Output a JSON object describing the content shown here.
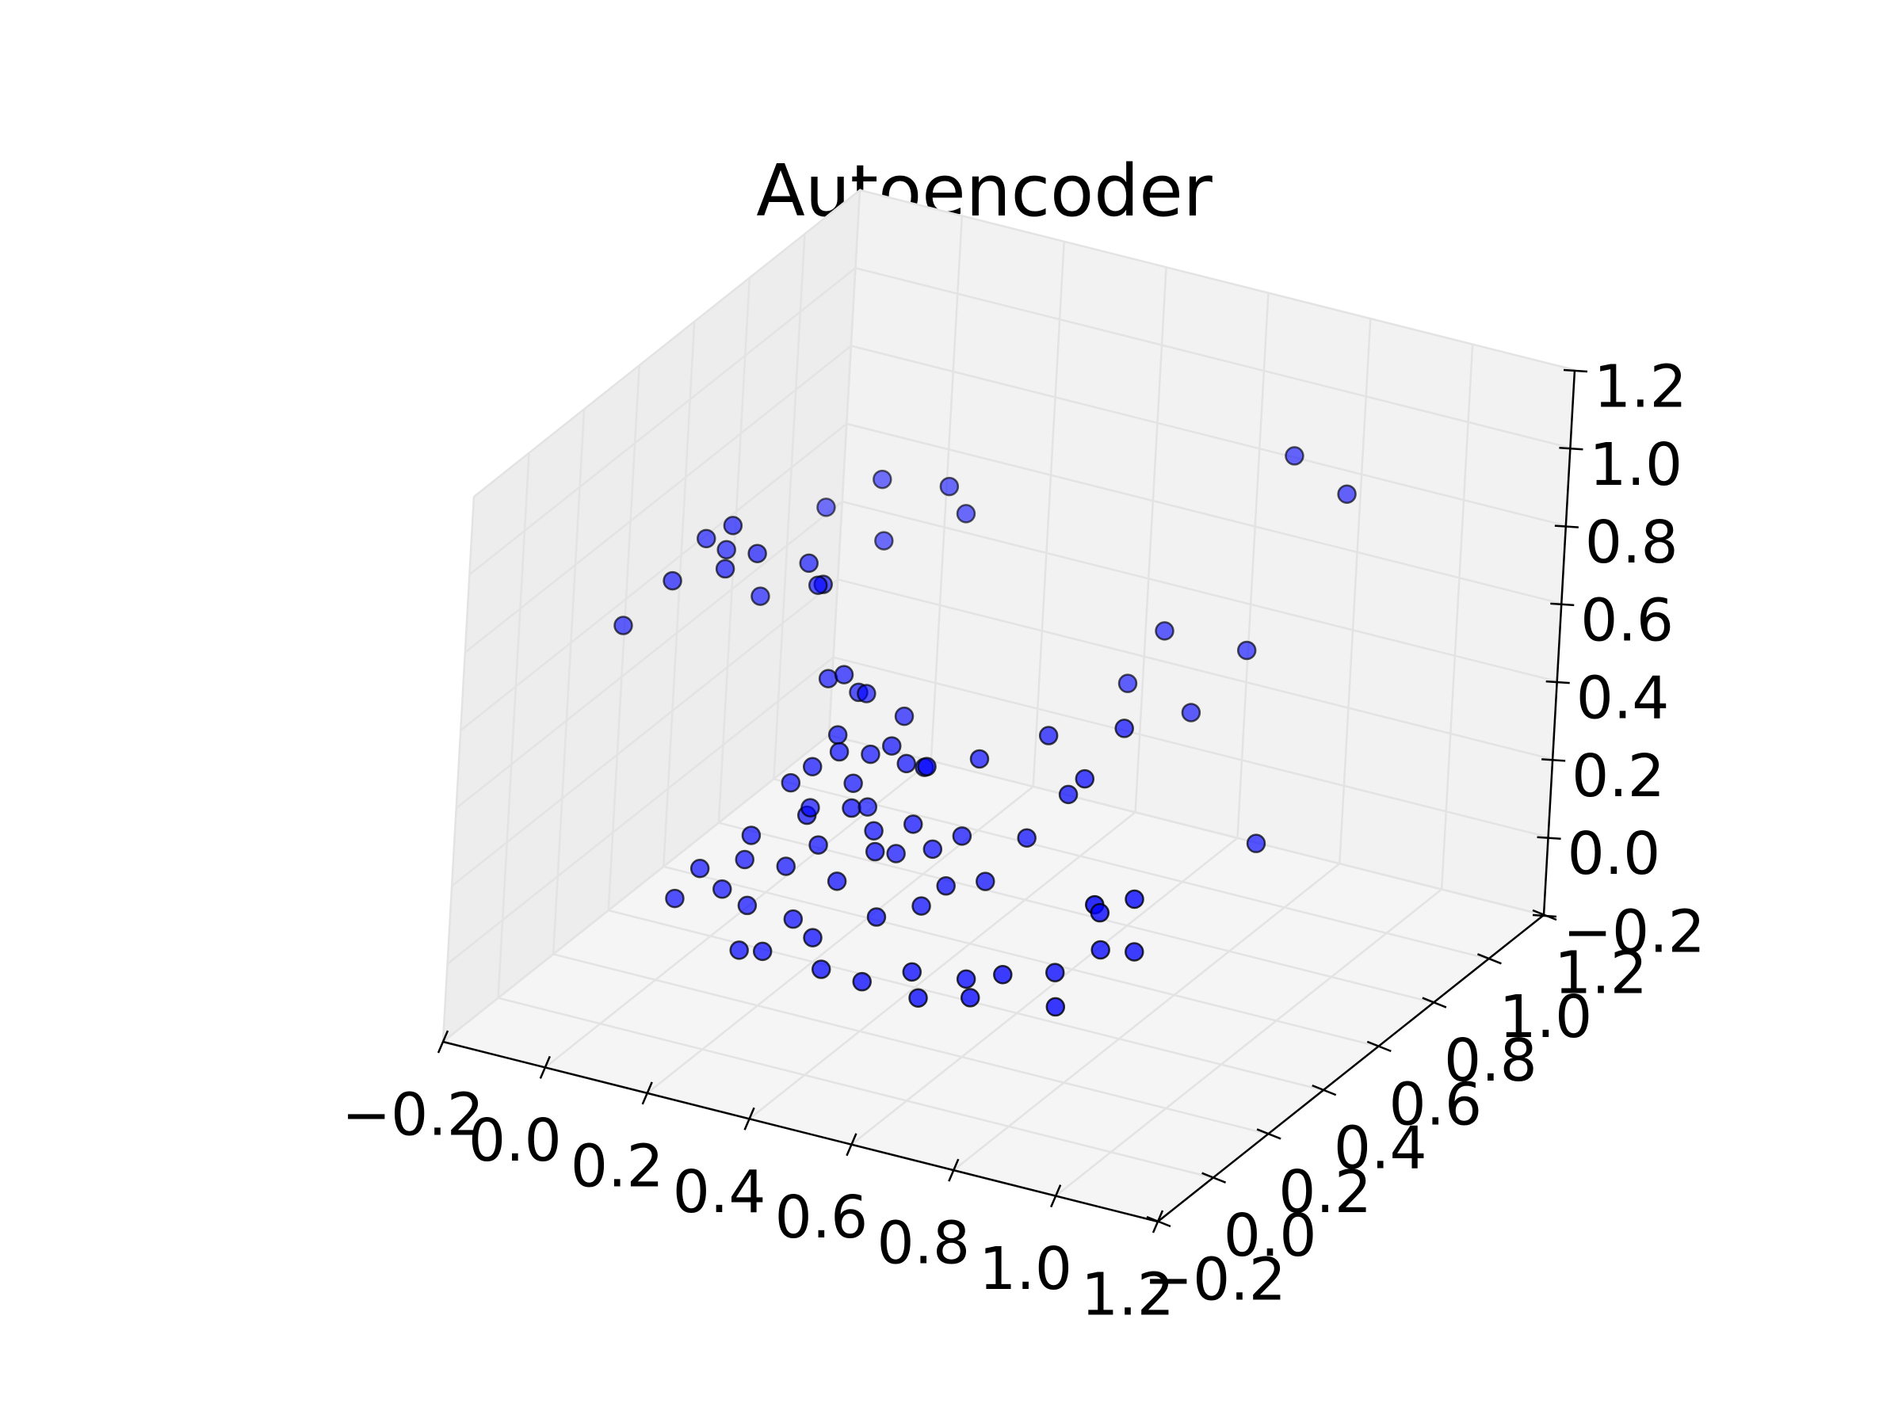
{
  "chart_data": {
    "type": "scatter3d",
    "title": "Autoencoder",
    "xlim": [
      -0.2,
      1.2
    ],
    "ylim": [
      -0.2,
      1.2
    ],
    "zlim": [
      -0.2,
      1.2
    ],
    "xticks": [
      {
        "value": -0.2,
        "label": "−0.2"
      },
      {
        "value": 0.0,
        "label": "0.0"
      },
      {
        "value": 0.2,
        "label": "0.2"
      },
      {
        "value": 0.4,
        "label": "0.4"
      },
      {
        "value": 0.6,
        "label": "0.6"
      },
      {
        "value": 0.8,
        "label": "0.8"
      },
      {
        "value": 1.0,
        "label": "1.0"
      },
      {
        "value": 1.2,
        "label": "1.2"
      }
    ],
    "yticks": [
      {
        "value": -0.2,
        "label": "−0.2"
      },
      {
        "value": 0.0,
        "label": "0.0"
      },
      {
        "value": 0.2,
        "label": "0.2"
      },
      {
        "value": 0.4,
        "label": "0.4"
      },
      {
        "value": 0.6,
        "label": "0.6"
      },
      {
        "value": 0.8,
        "label": "0.8"
      },
      {
        "value": 1.0,
        "label": "1.0"
      },
      {
        "value": 1.2,
        "label": "1.2"
      }
    ],
    "zticks": [
      {
        "value": -0.2,
        "label": "−0.2"
      },
      {
        "value": 0.0,
        "label": "0.0"
      },
      {
        "value": 0.2,
        "label": "0.2"
      },
      {
        "value": 0.4,
        "label": "0.4"
      },
      {
        "value": 0.6,
        "label": "0.6"
      },
      {
        "value": 0.8,
        "label": "0.8"
      },
      {
        "value": 1.0,
        "label": "1.0"
      },
      {
        "value": 1.2,
        "label": "1.2"
      }
    ],
    "grid": true,
    "series": [
      {
        "color": "#0000ff",
        "x": [
          0.1,
          0.05,
          0.08,
          0.1,
          0.14,
          0.03,
          0.2,
          0.24,
          0.22,
          -0.05,
          0.12,
          0.18,
          0.3,
          0.1,
          0.32,
          0.2,
          0.25,
          0.28,
          0.3,
          0.3,
          0.32,
          0.35,
          0.28,
          0.38,
          0.4,
          0.25,
          0.33,
          0.36,
          0.3,
          0.42,
          0.45,
          0.27,
          0.34,
          0.38,
          0.31,
          0.4,
          0.44,
          0.22,
          0.2,
          0.26,
          0.35,
          0.4,
          0.46,
          0.5,
          0.15,
          0.18,
          0.12,
          0.22,
          0.3,
          0.35,
          0.42,
          0.48,
          0.5,
          0.28,
          0.25,
          0.38,
          0.45,
          0.52,
          0.55,
          0.6,
          0.62,
          0.66,
          0.72,
          0.75,
          0.78,
          0.82,
          0.55,
          0.6,
          0.65,
          0.68,
          0.58,
          0.7,
          0.84,
          0.84,
          0.8,
          0.5,
          0.35,
          0.3,
          0.77,
          0.85,
          0.64,
          0.6,
          0.75,
          0.7,
          0.84
        ],
        "y": [
          0.2,
          0.2,
          0.22,
          0.18,
          0.22,
          0.12,
          0.3,
          0.28,
          0.3,
          0.1,
          0.28,
          0.6,
          0.62,
          0.55,
          0.65,
          0.58,
          0.3,
          0.3,
          0.32,
          0.25,
          0.22,
          0.28,
          0.2,
          0.3,
          0.32,
          0.18,
          0.26,
          0.2,
          0.15,
          0.35,
          0.3,
          0.22,
          0.3,
          0.25,
          0.18,
          0.22,
          0.28,
          0.1,
          0.12,
          0.16,
          0.18,
          0.3,
          0.32,
          0.35,
          0.05,
          0.08,
          0.02,
          0.1,
          0.12,
          0.1,
          0.2,
          0.25,
          0.3,
          0.05,
          0.02,
          0.08,
          0.1,
          0.15,
          0.12,
          0.2,
          0.18,
          0.22,
          0.3,
          0.25,
          0.35,
          0.4,
          0.35,
          0.4,
          0.45,
          0.45,
          0.5,
          0.55,
          0.2,
          0.35,
          0.3,
          0.4,
          0.4,
          0.35,
          1.0,
          1.05,
          0.8,
          0.75,
          0.9,
          0.8,
          0.8
        ],
        "z": [
          1.0,
          0.95,
          0.92,
          0.9,
          0.93,
          0.88,
          0.88,
          0.85,
          0.83,
          0.75,
          0.78,
          0.92,
          0.93,
          0.85,
          0.85,
          0.78,
          0.6,
          0.62,
          0.57,
          0.5,
          0.48,
          0.45,
          0.44,
          0.47,
          0.42,
          0.4,
          0.38,
          0.36,
          0.35,
          0.4,
          0.44,
          0.32,
          0.3,
          0.28,
          0.26,
          0.25,
          0.3,
          0.3,
          0.22,
          0.2,
          0.18,
          0.2,
          0.22,
          0.25,
          0.22,
          0.16,
          0.15,
          0.12,
          0.1,
          0.08,
          0.1,
          0.12,
          0.15,
          0.05,
          0.06,
          0.02,
          0.0,
          0.02,
          -0.02,
          0.0,
          -0.03,
          0.02,
          0.0,
          -0.05,
          0.05,
          0.03,
          0.15,
          0.25,
          0.35,
          0.4,
          0.45,
          0.48,
          0.27,
          0.2,
          0.18,
          0.42,
          0.48,
          0.55,
          0.95,
          0.85,
          0.57,
          0.45,
          0.5,
          0.38,
          0.09
        ]
      }
    ]
  }
}
